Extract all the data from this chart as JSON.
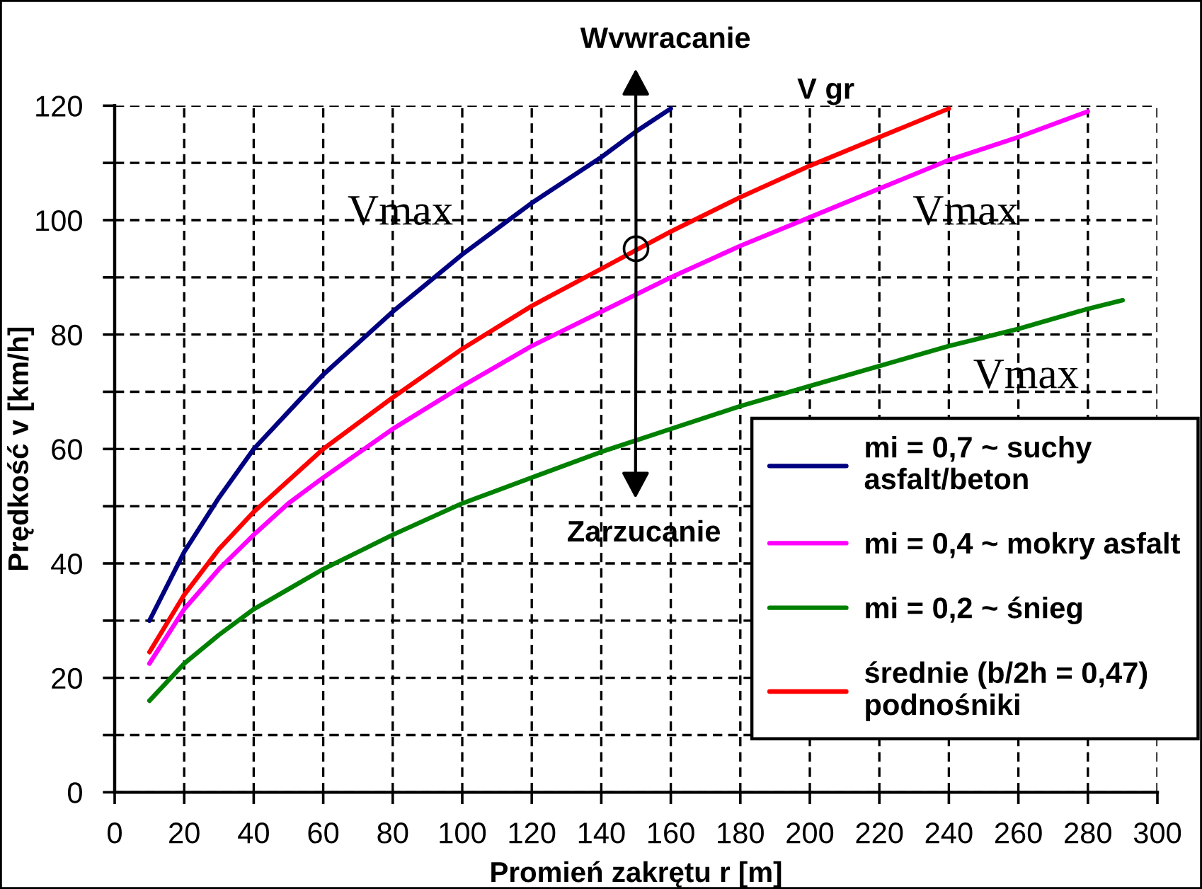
{
  "chart_data": {
    "type": "line",
    "xlabel": "Promień zakrętu r [m]",
    "ylabel": "Prędkość v [km/h]",
    "xlim": [
      0,
      300
    ],
    "ylim": [
      0,
      120
    ],
    "xticks": [
      0,
      20,
      40,
      60,
      80,
      100,
      120,
      140,
      160,
      180,
      200,
      220,
      240,
      260,
      280,
      300
    ],
    "yticks": [
      0,
      {
        "value": 10,
        "label": null
      },
      20,
      {
        "value": 30,
        "label": null
      },
      40,
      {
        "value": 50,
        "label": null
      },
      60,
      {
        "value": 70,
        "label": null
      },
      80,
      {
        "value": 90,
        "label": null
      },
      100,
      {
        "value": 110,
        "label": null
      },
      120
    ],
    "grid": true,
    "legend": "bottom right",
    "line_style": "solid",
    "series": [
      {
        "name": "mi = 0,7 ~ suchy\nasfalt/beton",
        "color": "#000080",
        "x": [
          10,
          20,
          30,
          40,
          50,
          60,
          70,
          80,
          90,
          100,
          110,
          120,
          130,
          140,
          150,
          160
        ],
        "values": [
          30,
          42,
          51.5,
          60,
          66.5,
          73,
          78.5,
          84,
          89,
          94,
          98.5,
          103,
          107,
          111,
          115.5,
          119.5
        ]
      },
      {
        "name": "mi = 0,4 ~ mokry asfalt",
        "color": "#ff00ff",
        "x": [
          10,
          20,
          30,
          40,
          50,
          60,
          80,
          100,
          120,
          140,
          160,
          180,
          200,
          220,
          240,
          260,
          280
        ],
        "values": [
          22.5,
          32,
          39,
          45,
          50.5,
          55,
          63.5,
          71,
          78,
          84,
          90,
          95.5,
          100.5,
          105.5,
          110.5,
          114.5,
          119
        ]
      },
      {
        "name": "mi = 0,2 ~ śnieg",
        "color": "#008000",
        "x": [
          10,
          20,
          30,
          40,
          50,
          60,
          80,
          100,
          120,
          140,
          160,
          180,
          200,
          220,
          240,
          260,
          280,
          290
        ],
        "values": [
          16,
          22.5,
          27.5,
          32,
          35.5,
          39,
          45,
          50.5,
          55,
          59.5,
          63.5,
          67.5,
          71,
          74.5,
          78,
          81,
          84.5,
          86
        ]
      },
      {
        "name": "średnie (b/2h = 0,47)\npodnośniki",
        "color": "#ff0000",
        "x": [
          10,
          20,
          30,
          40,
          50,
          60,
          80,
          100,
          120,
          140,
          160,
          180,
          200,
          220,
          240
        ],
        "values": [
          24.5,
          34.5,
          42.5,
          49,
          54.5,
          60,
          69,
          77.5,
          85,
          91.5,
          98,
          104,
          109.5,
          114.5,
          119.5
        ]
      },
      {
        "type": "scatter",
        "color": "#000000",
        "marker": "circle",
        "x": [
          150
        ],
        "values": [
          95
        ]
      }
    ],
    "annotations": [
      {
        "text": "Wvwracanie",
        "x": 150,
        "y": 95
      },
      "V gr",
      "Vmax",
      "Vmax",
      "Vmax",
      {
        "text": "Zarzucanie",
        "x": 150,
        "y": 95
      }
    ]
  }
}
